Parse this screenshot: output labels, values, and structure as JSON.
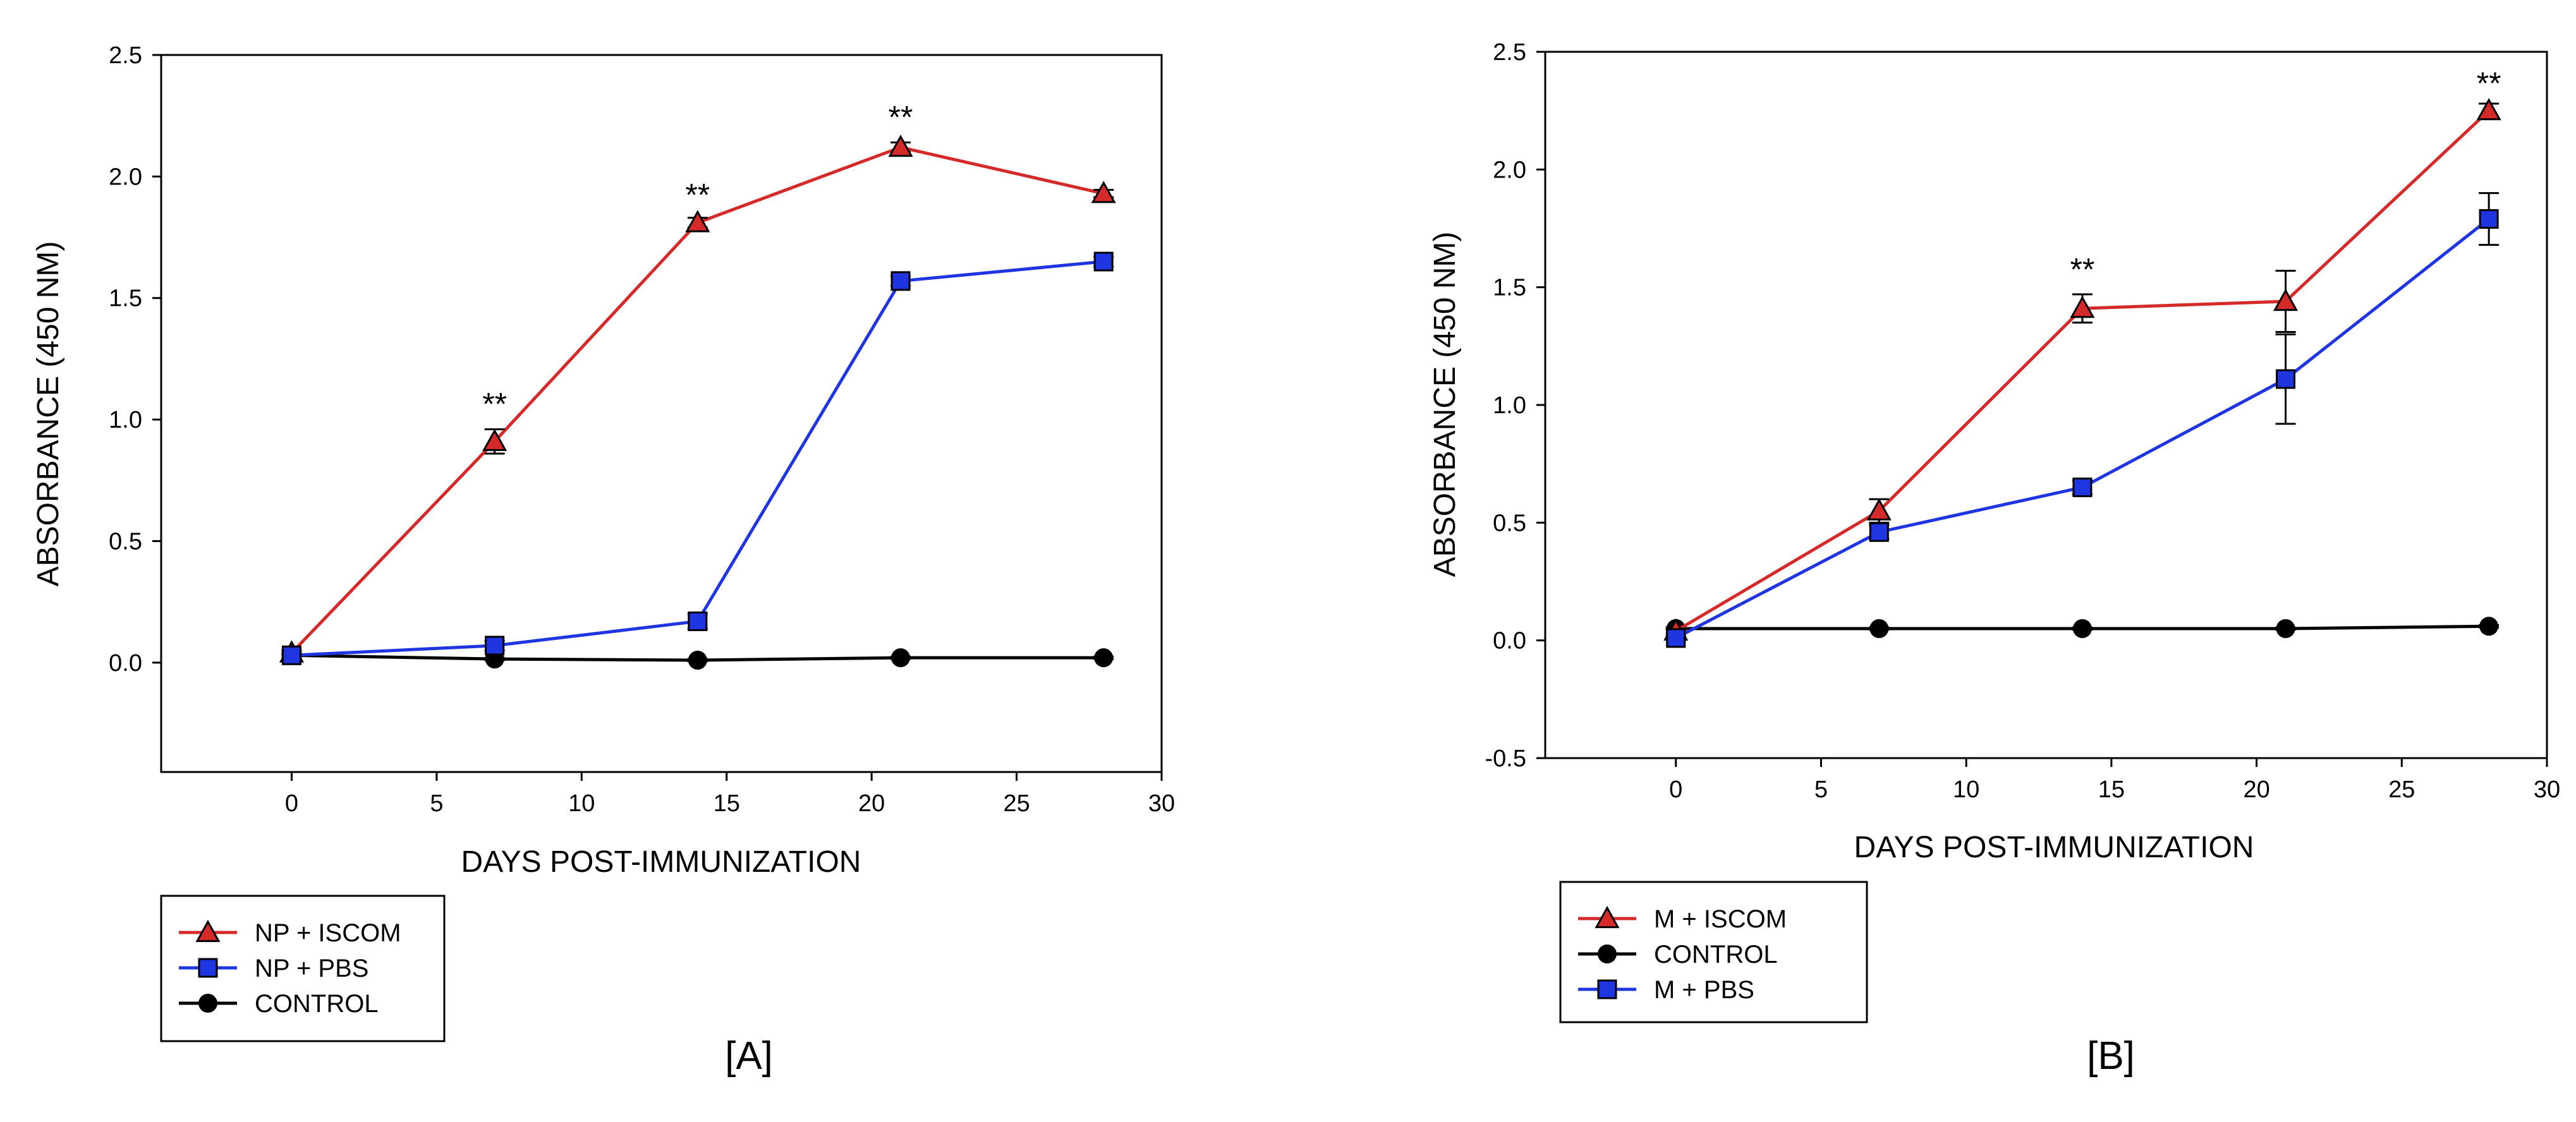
{
  "chart_data": [
    {
      "type": "line",
      "panel_label": "[A]",
      "xlabel": "DAYS POST-IMMUNIZATION",
      "ylabel": "ABSORBANCE (450 NM)",
      "xlim": [
        -4.5,
        30
      ],
      "ylim": [
        -0.45,
        2.5
      ],
      "xticks": [
        0,
        5,
        10,
        15,
        20,
        25,
        30
      ],
      "yticks": [
        0.0,
        0.5,
        1.0,
        1.5,
        2.0,
        2.5
      ],
      "ytick_labels": [
        "0.0",
        "0.5",
        "1.0",
        "1.5",
        "2.0",
        "2.5"
      ],
      "grid": false,
      "legend_position": "below-left",
      "series": [
        {
          "name": "NP + ISCOM",
          "color": "#d42a2a",
          "marker": "triangle",
          "x": [
            0,
            7,
            14,
            21,
            28
          ],
          "y": [
            0.04,
            0.91,
            1.81,
            2.12,
            1.93
          ],
          "err": [
            0.01,
            0.05,
            0.02,
            0.02,
            0.015
          ]
        },
        {
          "name": "NP + PBS",
          "color": "#1f35e0",
          "marker": "square",
          "x": [
            0,
            7,
            14,
            21,
            28
          ],
          "y": [
            0.03,
            0.07,
            0.17,
            1.57,
            1.65
          ],
          "err": [
            0.01,
            0.02,
            0.03,
            0.02,
            0.02
          ]
        },
        {
          "name": "CONTROL",
          "color": "#000000",
          "marker": "circle",
          "x": [
            0,
            7,
            14,
            21,
            28
          ],
          "y": [
            0.03,
            0.015,
            0.01,
            0.02,
            0.02
          ],
          "err": [
            0.005,
            0.005,
            0.005,
            0.005,
            0.005
          ]
        }
      ],
      "legend_order": [
        "NP + ISCOM",
        "NP + PBS",
        "CONTROL"
      ],
      "annotations": [
        {
          "text": "**",
          "x": 7,
          "y": 1.02
        },
        {
          "text": "**",
          "x": 14,
          "y": 1.88
        },
        {
          "text": "**",
          "x": 21,
          "y": 2.2
        }
      ]
    },
    {
      "type": "line",
      "panel_label": "[B]",
      "xlabel": "DAYS POST-IMMUNIZATION",
      "ylabel": "ABSORBANCE (450 NM)",
      "xlim": [
        -4.5,
        30
      ],
      "ylim": [
        -0.5,
        2.5
      ],
      "xticks": [
        0,
        5,
        10,
        15,
        20,
        25,
        30
      ],
      "yticks": [
        -0.5,
        0.0,
        0.5,
        1.0,
        1.5,
        2.0,
        2.5
      ],
      "ytick_labels": [
        "-0.5",
        "0.0",
        "0.5",
        "1.0",
        "1.5",
        "2.0",
        "2.5"
      ],
      "grid": false,
      "legend_position": "below-left",
      "series": [
        {
          "name": "M + ISCOM",
          "color": "#d42a2a",
          "marker": "triangle",
          "x": [
            0,
            7,
            14,
            21,
            28
          ],
          "y": [
            0.04,
            0.55,
            1.41,
            1.44,
            2.25
          ],
          "err": [
            0.01,
            0.05,
            0.06,
            0.13,
            0.03
          ]
        },
        {
          "name": "CONTROL",
          "color": "#000000",
          "marker": "circle",
          "x": [
            0,
            7,
            14,
            21,
            28
          ],
          "y": [
            0.05,
            0.05,
            0.05,
            0.05,
            0.06
          ],
          "err": [
            0.005,
            0.005,
            0.005,
            0.005,
            0.005
          ]
        },
        {
          "name": "M + PBS",
          "color": "#1f35e0",
          "marker": "square",
          "x": [
            0,
            7,
            14,
            21,
            28
          ],
          "y": [
            0.01,
            0.46,
            0.65,
            1.11,
            1.79
          ],
          "err": [
            0.01,
            0.03,
            0.03,
            0.19,
            0.11
          ]
        }
      ],
      "legend_order": [
        "M + ISCOM",
        "CONTROL",
        "M + PBS"
      ],
      "annotations": [
        {
          "text": "**",
          "x": 14,
          "y": 1.53
        },
        {
          "text": "**",
          "x": 28,
          "y": 2.32
        }
      ]
    }
  ]
}
